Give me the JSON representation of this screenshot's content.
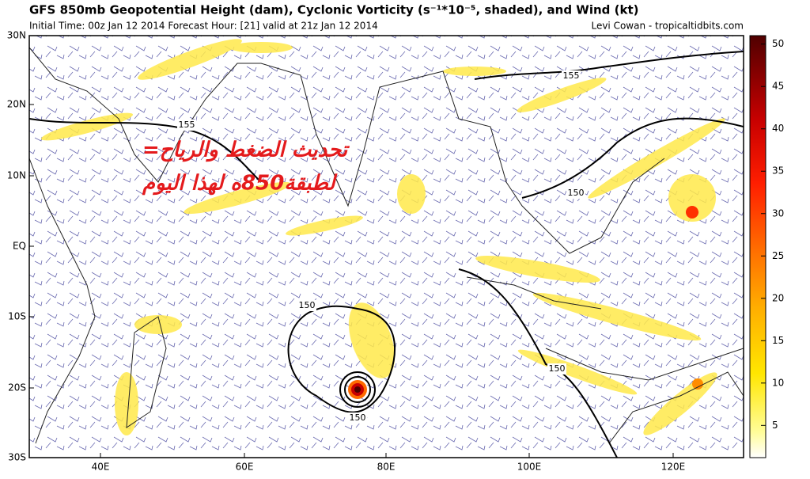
{
  "header": {
    "title": "GFS 850mb Geopotential Height (dam), Cyclonic Vorticity (s⁻¹*10⁻⁵, shaded), and Wind (kt)",
    "subtitle": "Initial Time: 00z Jan 12 2014 Forecast Hour: [21] valid at 21z Jan 12 2014",
    "credit": "Levi Cowan - tropicaltidbits.com"
  },
  "map": {
    "lat_labels": [
      "30N",
      "20N",
      "10N",
      "EQ",
      "10S",
      "20S",
      "30S"
    ],
    "lon_labels": [
      "40E",
      "60E",
      "80E",
      "100E",
      "120E"
    ],
    "contour_labels": [
      "155",
      "155",
      "150",
      "150",
      "150",
      "150"
    ]
  },
  "overlay": {
    "line1": "=تحديث الضغط والرياح",
    "line2": "لطبقة850ه لهذا اليوم"
  },
  "colorbar": {
    "lim": [
      1.2,
      51
    ],
    "ticks": [
      5,
      10,
      15,
      20,
      25,
      30,
      35,
      40,
      45,
      50
    ]
  }
}
